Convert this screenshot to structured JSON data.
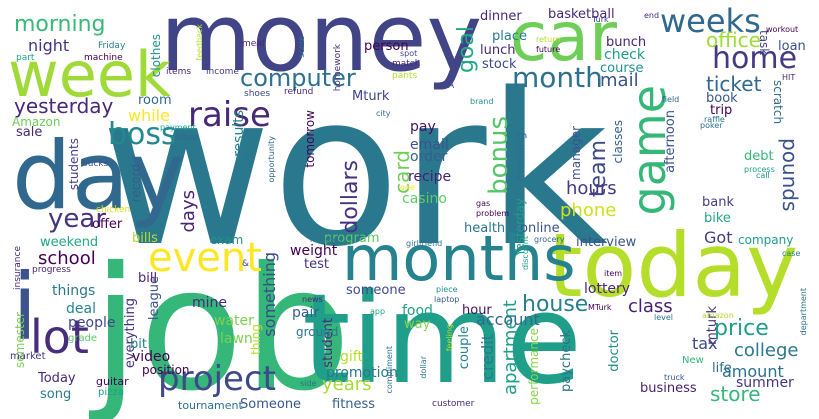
{
  "words": [
    {
      "text": "work",
      "color": "#2a788e"
    },
    {
      "text": "job",
      "color": "#35b779"
    },
    {
      "text": "time",
      "color": "#1f9e89"
    },
    {
      "text": "money",
      "color": "#414487"
    },
    {
      "text": "today",
      "color": "#b5de2b"
    },
    {
      "text": "day",
      "color": "#31688e"
    },
    {
      "text": "car",
      "color": "#6ece58"
    },
    {
      "text": "week",
      "color": "#a0da39"
    },
    {
      "text": "months",
      "color": "#26828e"
    },
    {
      "text": "game",
      "color": "#35b779"
    },
    {
      "text": "i",
      "color": "#3b528b"
    },
    {
      "text": "lot",
      "color": "#472d7b"
    },
    {
      "text": "project",
      "color": "#3e4989"
    },
    {
      "text": "event",
      "color": "#fde725"
    },
    {
      "text": "raise",
      "color": "#482878"
    },
    {
      "text": "boss",
      "color": "#23898e"
    },
    {
      "text": "home",
      "color": "#443a83"
    },
    {
      "text": "weeks",
      "color": "#31688e"
    },
    {
      "text": "month",
      "color": "#2c728e"
    },
    {
      "text": "bonus",
      "color": "#54c568"
    },
    {
      "text": "computer",
      "color": "#2c728e"
    },
    {
      "text": "year",
      "color": "#46327e"
    },
    {
      "text": "school",
      "color": "#440154"
    },
    {
      "text": "yesterday",
      "color": "#482878"
    },
    {
      "text": "morning",
      "color": "#38b977"
    },
    {
      "text": "night",
      "color": "#46337f"
    },
    {
      "text": "goal",
      "color": "#22a884"
    },
    {
      "text": "office",
      "color": "#a0da39"
    },
    {
      "text": "ticket",
      "color": "#31688e"
    },
    {
      "text": "mail",
      "color": "#3b528b"
    },
    {
      "text": "team",
      "color": "#3e4989"
    },
    {
      "text": "card",
      "color": "#6ece58"
    },
    {
      "text": "dollars",
      "color": "#46327e"
    },
    {
      "text": "days",
      "color": "#482475"
    },
    {
      "text": "phone",
      "color": "#d0e11c"
    },
    {
      "text": "hours",
      "color": "#443a83"
    },
    {
      "text": "pounds",
      "color": "#3b528b"
    },
    {
      "text": "price",
      "color": "#1f9e89"
    },
    {
      "text": "college",
      "color": "#2a788e"
    },
    {
      "text": "amount",
      "color": "#2c728e"
    },
    {
      "text": "store",
      "color": "#35b779"
    },
    {
      "text": "house",
      "color": "#277f8e"
    },
    {
      "text": "class",
      "color": "#481f70"
    },
    {
      "text": "years",
      "color": "#a8db34"
    },
    {
      "text": "apartment",
      "color": "#1f9e89"
    },
    {
      "text": "something",
      "color": "#3e4989"
    },
    {
      "text": "credit",
      "color": "#2a788e"
    },
    {
      "text": "account",
      "color": "#31688e"
    },
    {
      "text": "while",
      "color": "#fde725"
    },
    {
      "text": "things",
      "color": "#2a788e"
    },
    {
      "text": "people",
      "color": "#404688"
    },
    {
      "text": "water",
      "color": "#7ad151"
    },
    {
      "text": "lawn",
      "color": "#7ad151"
    },
    {
      "text": "mine",
      "color": "#472a7a"
    },
    {
      "text": "deal",
      "color": "#25858e"
    },
    {
      "text": "pair",
      "color": "#355f8d"
    },
    {
      "text": "food",
      "color": "#20a386"
    },
    {
      "text": "weight",
      "color": "#440154"
    },
    {
      "text": "promotion",
      "color": "#2a788e"
    },
    {
      "text": "Got",
      "color": "#443a83"
    },
    {
      "text": "company",
      "color": "#1f9e89"
    },
    {
      "text": "lottery",
      "color": "#482878"
    },
    {
      "text": "business",
      "color": "#481f70"
    },
    {
      "text": "summer",
      "color": "#46337f"
    },
    {
      "text": "tax",
      "color": "#3e4989"
    },
    {
      "text": "life",
      "color": "#2e6e8e"
    },
    {
      "text": "store",
      "color": "#35b779"
    },
    {
      "text": "fitness",
      "color": "#355f8d"
    },
    {
      "text": "Someone",
      "color": "#39568c"
    },
    {
      "text": "video",
      "color": "#440154"
    },
    {
      "text": "Today",
      "color": "#482878"
    },
    {
      "text": "song",
      "color": "#287c8e"
    },
    {
      "text": "gift",
      "color": "#b5de2b"
    },
    {
      "text": "results",
      "color": "#26828e"
    },
    {
      "text": "tomorrow",
      "color": "#440154"
    },
    {
      "text": "email",
      "color": "#3b528b"
    },
    {
      "text": "order",
      "color": "#355f8d"
    },
    {
      "text": "recipe",
      "color": "#481f70"
    },
    {
      "text": "casino",
      "color": "#5ec962"
    },
    {
      "text": "pay",
      "color": "#471063"
    },
    {
      "text": "sale",
      "color": "#482878"
    },
    {
      "text": "room",
      "color": "#31688e"
    },
    {
      "text": "record",
      "color": "#365c8d"
    },
    {
      "text": "offer",
      "color": "#440154"
    },
    {
      "text": "weekend",
      "color": "#22a884"
    },
    {
      "text": "bills",
      "color": "#b5de2b"
    },
    {
      "text": "exam",
      "color": "#21918c"
    },
    {
      "text": "program",
      "color": "#5ec962"
    },
    {
      "text": "test",
      "color": "#46337f"
    },
    {
      "text": "person",
      "color": "#440154"
    },
    {
      "text": "stock",
      "color": "#3e4989"
    },
    {
      "text": "lunch",
      "color": "#482878"
    },
    {
      "text": "place",
      "color": "#2a788e"
    },
    {
      "text": "dinner",
      "color": "#482878"
    },
    {
      "text": "basketball",
      "color": "#482878"
    },
    {
      "text": "check",
      "color": "#1f9e89"
    },
    {
      "text": "course",
      "color": "#21918c"
    },
    {
      "text": "bunch",
      "color": "#482475"
    },
    {
      "text": "loan",
      "color": "#3b528b"
    },
    {
      "text": "task",
      "color": "#404688"
    },
    {
      "text": "book",
      "color": "#39568c"
    },
    {
      "text": "trip",
      "color": "#440154"
    },
    {
      "text": "scratch",
      "color": "#2e6e8e"
    },
    {
      "text": "debt",
      "color": "#35b779"
    },
    {
      "text": "bank",
      "color": "#433e85"
    },
    {
      "text": "bike",
      "color": "#22a884"
    },
    {
      "text": "health",
      "color": "#2a788e"
    },
    {
      "text": "online",
      "color": "#3b528b"
    },
    {
      "text": "interview",
      "color": "#3b528b"
    },
    {
      "text": "Yesterday",
      "color": "#1f9e89"
    },
    {
      "text": "meeting",
      "color": "#2e6e8e"
    },
    {
      "text": "classes",
      "color": "#355f8d"
    },
    {
      "text": "manager",
      "color": "#3b528b"
    },
    {
      "text": "afternoon",
      "color": "#3b528b"
    },
    {
      "text": "hour",
      "color": "#471063"
    },
    {
      "text": "couple",
      "color": "#26828e"
    },
    {
      "text": "student",
      "color": "#482878"
    },
    {
      "text": "way",
      "color": "#86d549"
    },
    {
      "text": "someone",
      "color": "#3e4989"
    },
    {
      "text": "league",
      "color": "#3b528b"
    },
    {
      "text": "everything",
      "color": "#46327e"
    },
    {
      "text": "thing",
      "color": "#b5de2b"
    },
    {
      "text": "bit",
      "color": "#287c8e"
    },
    {
      "text": "bill",
      "color": "#481f70"
    },
    {
      "text": "semester",
      "color": "#7ad151"
    },
    {
      "text": "students",
      "color": "#404688"
    },
    {
      "text": "Amazon",
      "color": "#6ece58"
    },
    {
      "text": "Mturk",
      "color": "#414487"
    },
    {
      "text": "clothes",
      "color": "#21918c"
    },
    {
      "text": "performance",
      "color": "#86d549"
    },
    {
      "text": "paycheck",
      "color": "#2c728e"
    },
    {
      "text": "doctor",
      "color": "#21918c"
    },
    {
      "text": "mturk",
      "color": "#46337f"
    },
    {
      "text": "position",
      "color": "#440154"
    },
    {
      "text": "ground",
      "color": "#2a788e"
    },
    {
      "text": "tournament",
      "color": "#2c728e"
    },
    {
      "text": "guitar",
      "color": "#440154"
    },
    {
      "text": "pizza",
      "color": "#1f9e89"
    },
    {
      "text": "grade",
      "color": "#5ec962"
    },
    {
      "text": "market",
      "color": "#46337f"
    },
    {
      "text": "progress",
      "color": "#482878"
    },
    {
      "text": "insurance",
      "color": "#482878"
    },
    {
      "text": "chicken",
      "color": "#d8e219"
    },
    {
      "text": "bucks",
      "color": "#3b528b"
    },
    {
      "text": "coffee",
      "color": "#31688e"
    },
    {
      "text": "payment",
      "color": "#1f9e89"
    },
    {
      "text": "items",
      "color": "#482878"
    },
    {
      "text": "income",
      "color": "#443a83"
    },
    {
      "text": "meal",
      "color": "#482878"
    },
    {
      "text": "shoes",
      "color": "#3e4989"
    },
    {
      "text": "refund",
      "color": "#482878"
    },
    {
      "text": "score",
      "color": "#2a788e"
    },
    {
      "text": "homework",
      "color": "#46327e"
    },
    {
      "text": "match",
      "color": "#482878"
    },
    {
      "text": "spot",
      "color": "#404688"
    },
    {
      "text": "pants",
      "color": "#b5de2b"
    },
    {
      "text": "feedback",
      "color": "#b5de2b"
    },
    {
      "text": "Friday",
      "color": "#277f8e"
    },
    {
      "text": "machine",
      "color": "#440154"
    },
    {
      "text": "part",
      "color": "#20a386"
    },
    {
      "text": "city",
      "color": "#2c728e"
    },
    {
      "text": "brand",
      "color": "#21918c"
    },
    {
      "text": "return",
      "color": "#b5de2b"
    },
    {
      "text": "future",
      "color": "#440154"
    },
    {
      "text": "Turk",
      "color": "#3e4989"
    },
    {
      "text": "end",
      "color": "#482878"
    },
    {
      "text": "workout",
      "color": "#440154"
    },
    {
      "text": "field",
      "color": "#31688e"
    },
    {
      "text": "poker",
      "color": "#2c728e"
    },
    {
      "text": "raffle",
      "color": "#2a788e"
    },
    {
      "text": "HIT",
      "color": "#482878"
    },
    {
      "text": "process",
      "color": "#1f9e89"
    },
    {
      "text": "call",
      "color": "#21918c"
    },
    {
      "text": "gas",
      "color": "#440154"
    },
    {
      "text": "problem",
      "color": "#440154"
    },
    {
      "text": "discount",
      "color": "#1f9e89"
    },
    {
      "text": "girlfriend",
      "color": "#2c728e"
    },
    {
      "text": "grocery",
      "color": "#31688e"
    },
    {
      "text": "minutes",
      "color": "#2a788e"
    },
    {
      "text": "news",
      "color": "#482878"
    },
    {
      "text": "app",
      "color": "#1f9e89"
    },
    {
      "text": "piece",
      "color": "#21918c"
    },
    {
      "text": "laptop",
      "color": "#355f8d"
    },
    {
      "text": "MTurk",
      "color": "#440154"
    },
    {
      "text": "level",
      "color": "#2a788e"
    },
    {
      "text": "amazon",
      "color": "#b5de2b"
    },
    {
      "text": "department",
      "color": "#2c728e"
    },
    {
      "text": "case",
      "color": "#2a788e"
    },
    {
      "text": "item",
      "color": "#440154"
    },
    {
      "text": "New",
      "color": "#35b779"
    },
    {
      "text": "truck",
      "color": "#3b528b"
    },
    {
      "text": "compliment",
      "color": "#2c728e"
    },
    {
      "text": "dollar",
      "color": "#2a788e"
    },
    {
      "text": "feeling",
      "color": "#b5de2b"
    },
    {
      "text": "side",
      "color": "#2c728e"
    },
    {
      "text": "customer",
      "color": "#482878"
    },
    {
      "text": "opportunity",
      "color": "#31688e"
    },
    {
      "text": "one",
      "color": "#fde725"
    },
    {
      "text": "A",
      "color": "#3b528b"
    },
    {
      "text": "&",
      "color": "#3e4989"
    }
  ]
}
